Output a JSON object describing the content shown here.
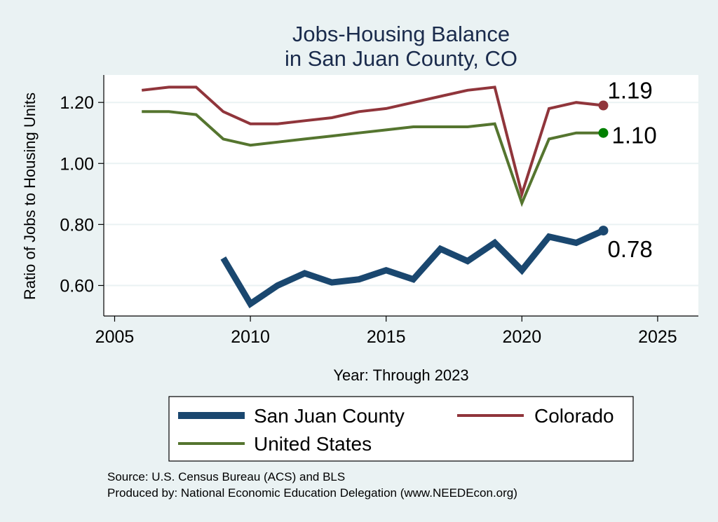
{
  "chart_data": {
    "type": "line",
    "title_line1": "Jobs-Housing Balance",
    "title_line2": "in San Juan County, CO",
    "xlabel": "Year: Through 2023",
    "ylabel": "Ratio of Jobs to Housing Units",
    "xlim": [
      2004.6,
      2026.5
    ],
    "ylim": [
      0.5,
      1.29
    ],
    "xticks": [
      2005,
      2010,
      2015,
      2020,
      2025
    ],
    "yticks": [
      0.6,
      0.8,
      1.0,
      1.2
    ],
    "ytick_labels": [
      "0.60",
      "0.80",
      "1.00",
      "1.20"
    ],
    "series": [
      {
        "name": "San Juan County",
        "color": "#1a476f",
        "x": [
          2009,
          2010,
          2011,
          2012,
          2013,
          2014,
          2015,
          2016,
          2017,
          2018,
          2019,
          2020,
          2021,
          2022,
          2023
        ],
        "values": [
          0.69,
          0.54,
          0.6,
          0.64,
          0.61,
          0.62,
          0.65,
          0.62,
          0.72,
          0.68,
          0.74,
          0.65,
          0.76,
          0.74,
          0.78
        ],
        "end_label": "0.78"
      },
      {
        "name": "Colorado",
        "color": "#90353b",
        "x": [
          2006,
          2007,
          2008,
          2009,
          2010,
          2011,
          2012,
          2013,
          2014,
          2015,
          2016,
          2017,
          2018,
          2019,
          2020,
          2021,
          2022,
          2023
        ],
        "values": [
          1.24,
          1.25,
          1.25,
          1.17,
          1.13,
          1.13,
          1.14,
          1.15,
          1.17,
          1.18,
          1.2,
          1.22,
          1.24,
          1.25,
          0.9,
          1.18,
          1.2,
          1.19
        ],
        "end_label": "1.19"
      },
      {
        "name": "United States",
        "color": "#55752f",
        "x": [
          2006,
          2007,
          2008,
          2009,
          2010,
          2011,
          2012,
          2013,
          2014,
          2015,
          2016,
          2017,
          2018,
          2019,
          2020,
          2021,
          2022,
          2023
        ],
        "values": [
          1.17,
          1.17,
          1.16,
          1.08,
          1.06,
          1.07,
          1.08,
          1.09,
          1.1,
          1.11,
          1.12,
          1.12,
          1.12,
          1.13,
          0.87,
          1.08,
          1.1,
          1.1
        ],
        "end_label": "1.10",
        "end_marker_color": "#008000"
      }
    ],
    "legend": {
      "position": "bottom",
      "items": [
        "San Juan County",
        "Colorado",
        "United States"
      ]
    },
    "source_line1": "Source: U.S. Census Bureau (ACS) and BLS",
    "source_line2": "Produced by: National Economic Education Delegation (www.NEEDEcon.org)"
  }
}
